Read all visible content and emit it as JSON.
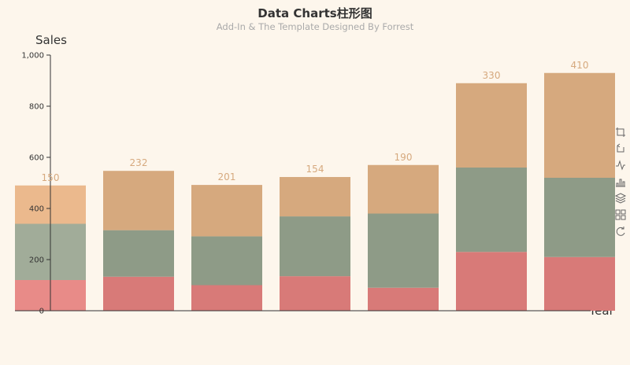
{
  "chart_data": {
    "type": "bar",
    "stacked": true,
    "title": "Data Charts柱形图",
    "subtitle": "Add-In & The Template Designed By Forrest",
    "ylabel": "Sales",
    "xlabel": "Year",
    "ylim": [
      0,
      1000
    ],
    "yticks": [
      "0",
      "200",
      "400",
      "600",
      "800",
      "1,000"
    ],
    "grid": false,
    "categories": [
      "",
      "",
      "",
      "",
      "",
      "",
      ""
    ],
    "series": [
      {
        "values": [
          120,
          133,
          100,
          135,
          90,
          230,
          210
        ],
        "color": "#d87a78"
      },
      {
        "values": [
          220,
          182,
          191,
          234,
          290,
          330,
          310
        ],
        "color": "#8e9b87"
      },
      {
        "values": [
          150,
          232,
          201,
          154,
          190,
          330,
          410
        ],
        "color": "#d6a97e",
        "show_labels": true
      }
    ],
    "highlight_color": "#e88b88",
    "highlight_color_series2": "#a1ac99",
    "highlight_color_series3": "#ebb98d",
    "label_color": "#d6a97e",
    "axis_color": "#333333"
  },
  "toolbox": [
    "zoom-icon",
    "zoom-reset-icon",
    "line-chart-icon",
    "bar-chart-icon",
    "stack-icon",
    "tiled-icon",
    "restore-icon"
  ]
}
